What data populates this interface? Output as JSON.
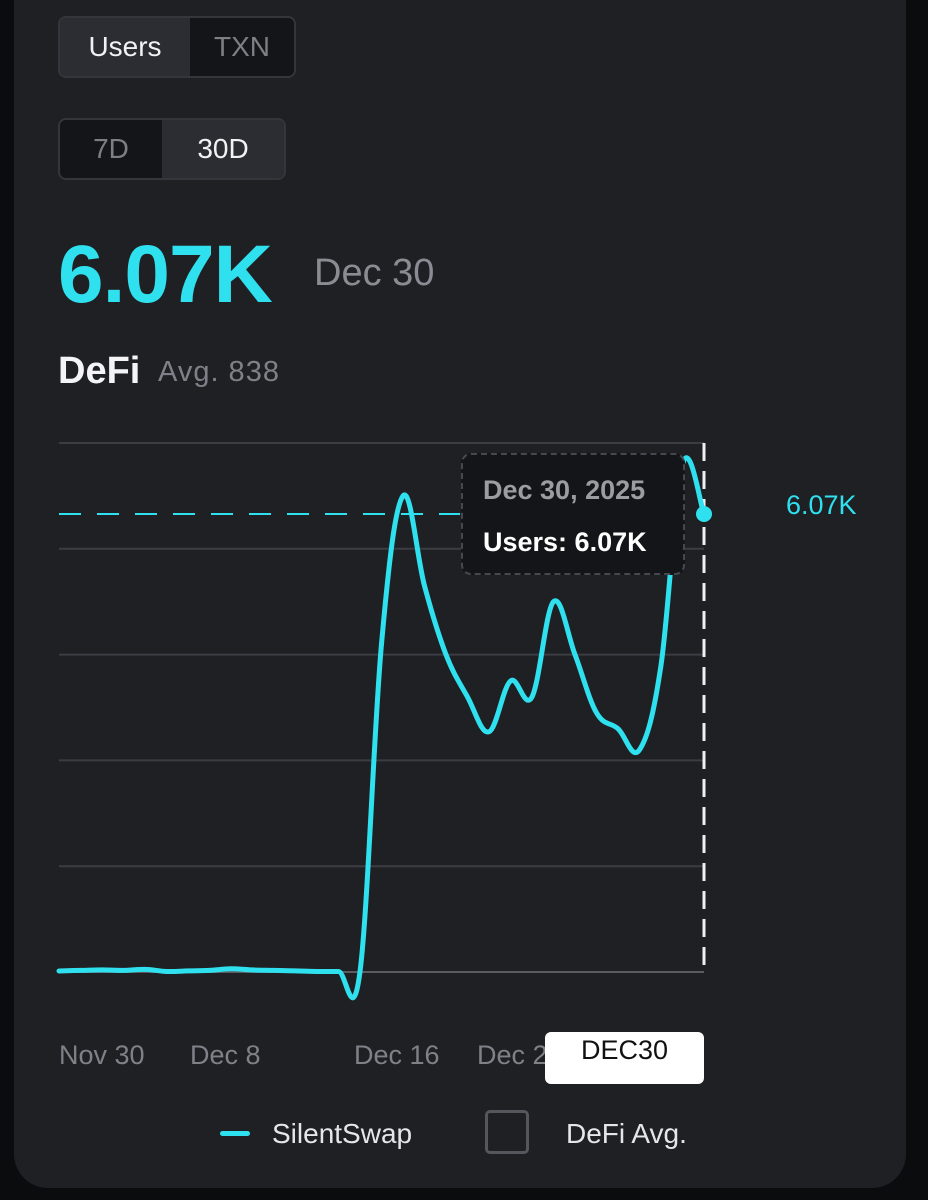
{
  "metric_toggle": {
    "options": [
      "Users",
      "TXN"
    ],
    "active": "Users"
  },
  "range_toggle": {
    "options": [
      "7D",
      "30D"
    ],
    "active": "30D"
  },
  "headline": {
    "value": "6.07K",
    "date": "Dec 30"
  },
  "category": {
    "title": "DeFi",
    "avg_text": "Avg. 838"
  },
  "tooltip": {
    "date": "Dec 30, 2025",
    "value_text": "Users: 6.07K"
  },
  "end_label": "6.07K",
  "x_badge": "DEC30",
  "legend": [
    {
      "label": "SilentSwap",
      "color": "#2fe1ef"
    },
    {
      "label": "DeFi Avg."
    }
  ],
  "colors": {
    "accent": "#2fe1ef",
    "card_bg": "#1f2024"
  },
  "chart_data": {
    "type": "line",
    "xlabel": "",
    "ylabel": "",
    "x_tick_labels": [
      "Nov 30",
      "Dec 8",
      "Dec 16",
      "Dec 2"
    ],
    "grid": "horizontal",
    "ylim": [
      0,
      5000
    ],
    "reference_line": {
      "value": 6070,
      "style": "dashed"
    },
    "series": [
      {
        "name": "SilentSwap",
        "points": [
          [
            "Nov 30",
            10
          ],
          [
            "Dec 1",
            15
          ],
          [
            "Dec 2",
            20
          ],
          [
            "Dec 3",
            15
          ],
          [
            "Dec 4",
            25
          ],
          [
            "Dec 5",
            5
          ],
          [
            "Dec 6",
            10
          ],
          [
            "Dec 7",
            15
          ],
          [
            "Dec 8",
            30
          ],
          [
            "Dec 9",
            20
          ],
          [
            "Dec 10",
            15
          ],
          [
            "Dec 11",
            10
          ],
          [
            "Dec 12",
            5
          ],
          [
            "Dec 13",
            5
          ],
          [
            "Dec 14",
            3
          ],
          [
            "Dec 15",
            3100
          ],
          [
            "Dec 16",
            4500
          ],
          [
            "Dec 17",
            3650
          ],
          [
            "Dec 18",
            3000
          ],
          [
            "Dec 19",
            2600
          ],
          [
            "Dec 20",
            2270
          ],
          [
            "Dec 21",
            2750
          ],
          [
            "Dec 22",
            2600
          ],
          [
            "Dec 23",
            3500
          ],
          [
            "Dec 24",
            3000
          ],
          [
            "Dec 25",
            2450
          ],
          [
            "Dec 26",
            2300
          ],
          [
            "Dec 27",
            2100
          ],
          [
            "Dec 28",
            2900
          ],
          [
            "Dec 29",
            4800
          ],
          [
            "Dec 30",
            6070
          ]
        ]
      }
    ]
  }
}
